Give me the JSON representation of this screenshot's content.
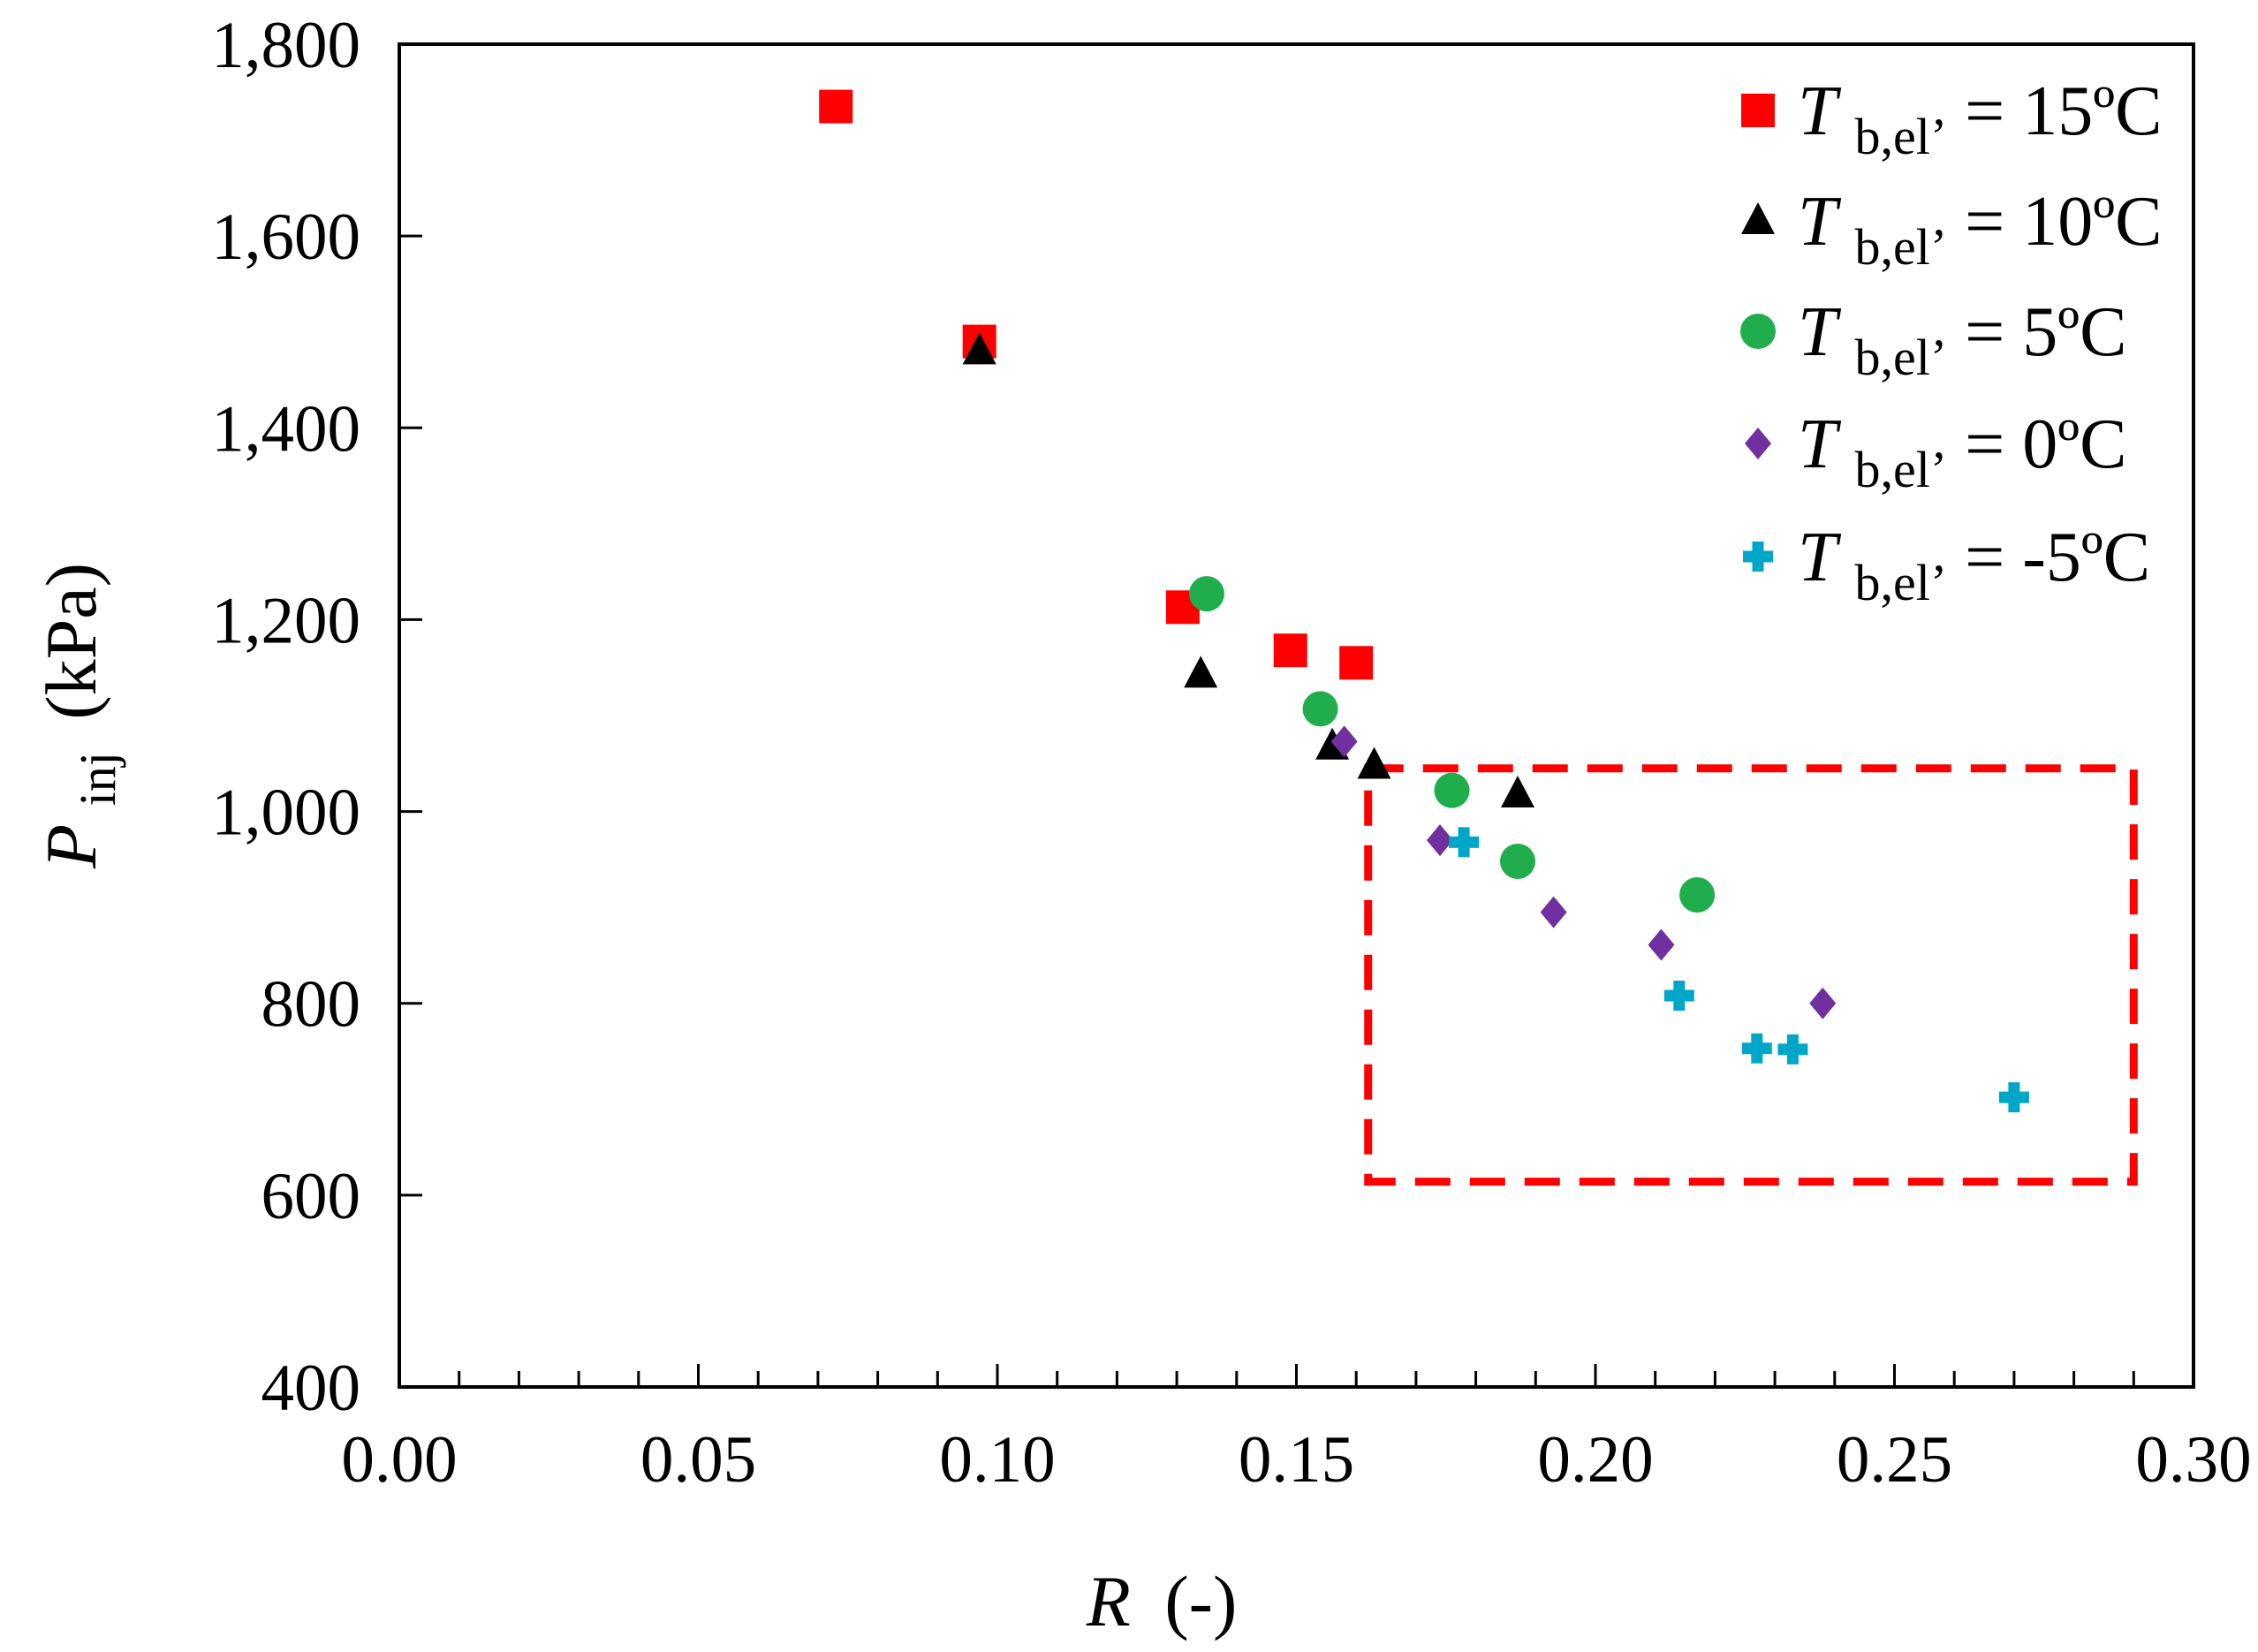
{
  "chart_data": {
    "type": "scatter",
    "xlabel": {
      "var": "R",
      "unit": "(-)"
    },
    "ylabel": {
      "var": "P",
      "sub": "inj",
      "unit": "(kPa)"
    },
    "xlim": [
      0,
      0.3
    ],
    "ylim": [
      400,
      1800
    ],
    "x_ticks": [
      0,
      0.05,
      0.1,
      0.15,
      0.2,
      0.25,
      0.3
    ],
    "x_tick_labels": [
      "0.00",
      "0.05",
      "0.10",
      "0.15",
      "0.20",
      "0.25",
      "0.30"
    ],
    "x_minor_step": 0.01,
    "y_ticks": [
      400,
      600,
      800,
      1000,
      1200,
      1400,
      1600,
      1800
    ],
    "y_tick_labels": [
      "400",
      "600",
      "800",
      "1,000",
      "1,200",
      "1,400",
      "1,600",
      "1,800"
    ],
    "grid": false,
    "legend_position": "top-right",
    "series": [
      {
        "name_var": "T",
        "name_sub": "b,el’",
        "name_value": " = 15ºC",
        "marker": "square",
        "color": "#ff0000",
        "points": [
          [
            0.073,
            1735
          ],
          [
            0.097,
            1490
          ],
          [
            0.131,
            1213
          ],
          [
            0.149,
            1168
          ],
          [
            0.16,
            1155
          ]
        ]
      },
      {
        "name_var": "T",
        "name_sub": "b,el’",
        "name_value": " = 10ºC",
        "marker": "triangle",
        "color": "#000000",
        "points": [
          [
            0.097,
            1480
          ],
          [
            0.134,
            1143
          ],
          [
            0.156,
            1068
          ],
          [
            0.163,
            1048
          ],
          [
            0.187,
            1018
          ]
        ]
      },
      {
        "name_var": "T",
        "name_sub": "b,el’",
        "name_value": " = 5ºC",
        "marker": "circle",
        "color": "#1fae4b",
        "points": [
          [
            0.135,
            1227
          ],
          [
            0.154,
            1107
          ],
          [
            0.176,
            1022
          ],
          [
            0.187,
            948
          ],
          [
            0.217,
            913
          ]
        ]
      },
      {
        "name_var": "T",
        "name_sub": "b,el’",
        "name_value": " = 0ºC",
        "marker": "diamond",
        "color": "#7030a0",
        "points": [
          [
            0.158,
            1073
          ],
          [
            0.174,
            970
          ],
          [
            0.193,
            895
          ],
          [
            0.211,
            861
          ],
          [
            0.238,
            800
          ]
        ]
      },
      {
        "name_var": "T",
        "name_sub": "b,el’",
        "name_value": " = -5ºC",
        "marker": "plus",
        "color": "#00a6c8",
        "points": [
          [
            0.178,
            968
          ],
          [
            0.214,
            808
          ],
          [
            0.227,
            753
          ],
          [
            0.233,
            752
          ],
          [
            0.27,
            702
          ]
        ]
      }
    ],
    "annotation_box": {
      "x_range": [
        0.162,
        0.29
      ],
      "y_range": [
        614,
        1045
      ],
      "style": "dashed",
      "color": "#ff0000"
    }
  }
}
